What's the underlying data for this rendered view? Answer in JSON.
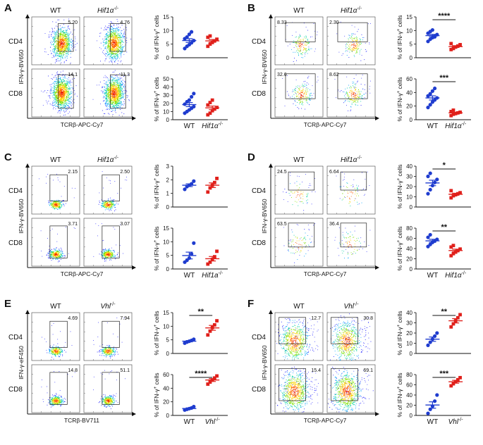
{
  "panels": [
    {
      "id": "A",
      "col_labels": [
        "WT",
        "Hif1α-/-"
      ],
      "row_labels": [
        "CD4",
        "CD8"
      ],
      "gates": [
        [
          "5.20",
          "4.76"
        ],
        [
          "14.1",
          "11.3"
        ]
      ],
      "y_axis_label": "IFN-γ-BV650",
      "x_axis_label": "TCRβ-APC-Cy7",
      "dot_ylabel": "% of IFN-γ+ cells",
      "group_labels": [
        "WT",
        "Hif1α-/-"
      ],
      "density": "high",
      "dots": [
        {
          "row": "CD4",
          "ylim": [
            0,
            15
          ],
          "yticks": [
            0,
            5,
            10,
            15
          ],
          "sig": "",
          "wt": [
            3.4,
            4.2,
            4.8,
            5.5,
            6.3,
            7.0,
            7.6,
            8.6,
            9.5
          ],
          "ko": [
            4.2,
            5.0,
            5.6,
            6.2,
            6.8,
            7.5,
            8.0
          ]
        },
        {
          "row": "CD8",
          "ylim": [
            0,
            50
          ],
          "yticks": [
            0,
            10,
            20,
            30,
            40,
            50
          ],
          "sig": "",
          "wt": [
            8,
            10,
            12,
            14,
            16,
            19,
            22,
            24,
            28,
            32
          ],
          "ko": [
            6,
            8,
            11,
            13,
            15,
            18,
            21,
            24
          ]
        }
      ]
    },
    {
      "id": "B",
      "col_labels": [
        "WT",
        "Hif1α-/-"
      ],
      "row_labels": [
        "CD4",
        "CD8"
      ],
      "gates": [
        [
          "8.33",
          "2.30"
        ],
        [
          "32.6",
          "8.62"
        ]
      ],
      "y_axis_label": "IFN-γ-BV650",
      "x_axis_label": "TCRβ-APC-Cy7",
      "dot_ylabel": "% of IFN-γ+ cells",
      "group_labels": [
        "WT",
        "Hif1α-/-"
      ],
      "density": "low",
      "dots": [
        {
          "row": "CD4",
          "ylim": [
            0,
            15
          ],
          "yticks": [
            0,
            5,
            10,
            15
          ],
          "sig": "****",
          "wt": [
            6.0,
            6.8,
            7.4,
            8.0,
            8.5,
            9.0,
            9.6,
            10.2,
            7.7
          ],
          "ko": [
            3.0,
            3.4,
            3.9,
            4.3,
            4.8,
            5.2
          ]
        },
        {
          "row": "CD8",
          "ylim": [
            0,
            60
          ],
          "yticks": [
            0,
            20,
            40,
            60
          ],
          "sig": "***",
          "wt": [
            18,
            22,
            26,
            29,
            32,
            35,
            38,
            42,
            46
          ],
          "ko": [
            6,
            8,
            9,
            10,
            11,
            12,
            14
          ]
        }
      ]
    },
    {
      "id": "C",
      "col_labels": [
        "WT",
        "Hif1α-/-"
      ],
      "row_labels": [
        "CD4",
        "CD8"
      ],
      "gates": [
        [
          "2.15",
          "2.50"
        ],
        [
          "3.71",
          "3.07"
        ]
      ],
      "y_axis_label": "IFN-γ-BV650",
      "x_axis_label": "TCRβ-APC-Cy7",
      "dot_ylabel": "% of IFN-γ+ cells",
      "group_labels": [
        "WT",
        "Hif1a-/-"
      ],
      "density": "tight",
      "dots": [
        {
          "row": "CD4",
          "ylim": [
            0,
            3
          ],
          "yticks": [
            0,
            1,
            2,
            3
          ],
          "sig": "",
          "wt": [
            1.3,
            1.5,
            1.6,
            1.7,
            1.9
          ],
          "ko": [
            1.1,
            1.4,
            1.6,
            1.8,
            2.1
          ]
        },
        {
          "row": "CD8",
          "ylim": [
            0,
            15
          ],
          "yticks": [
            0,
            5,
            10,
            15
          ],
          "sig": "",
          "wt": [
            2.5,
            3.2,
            4.0,
            5.5,
            9.5
          ],
          "ko": [
            1.8,
            2.5,
            3.5,
            4.5,
            6.5
          ]
        }
      ]
    },
    {
      "id": "D",
      "col_labels": [
        "WT",
        "Hif1α-/-"
      ],
      "row_labels": [
        "CD4",
        "CD8"
      ],
      "gates": [
        [
          "24.5",
          "6.64"
        ],
        [
          "63.5",
          "36.4"
        ]
      ],
      "y_axis_label": "IFN-γ-BV650",
      "x_axis_label": "TCRβ-APC-Cy7",
      "dot_ylabel": "% of IFN-γ+ cells",
      "group_labels": [
        "WT",
        "Hif1α-/-"
      ],
      "density": "sparse",
      "dots": [
        {
          "row": "CD4",
          "ylim": [
            0,
            40
          ],
          "yticks": [
            0,
            10,
            20,
            30,
            40
          ],
          "sig": "*",
          "wt": [
            13,
            17,
            21,
            24,
            27,
            30,
            33
          ],
          "ko": [
            9,
            11,
            12,
            13,
            14,
            16
          ]
        },
        {
          "row": "CD8",
          "ylim": [
            0,
            80
          ],
          "yticks": [
            0,
            20,
            40,
            60,
            80
          ],
          "sig": "**",
          "wt": [
            44,
            48,
            52,
            55,
            58,
            62,
            67
          ],
          "ko": [
            26,
            30,
            33,
            36,
            39,
            43,
            46
          ]
        }
      ]
    },
    {
      "id": "E",
      "col_labels": [
        "WT",
        "Vhl-/-"
      ],
      "row_labels": [
        "CD4",
        "CD8"
      ],
      "gates": [
        [
          "4.69",
          "7.94"
        ],
        [
          "14.8",
          "51.1"
        ]
      ],
      "y_axis_label": "IFN-γ-eF450",
      "x_axis_label": "TCRβ-BV711",
      "dot_ylabel": "% of IFN-γ+ cells",
      "group_labels": [
        "WT",
        "Vhl-/-"
      ],
      "density": "tight",
      "dots": [
        {
          "row": "CD4",
          "ylim": [
            0,
            15
          ],
          "yticks": [
            0,
            5,
            10,
            15
          ],
          "sig": "**",
          "wt": [
            3.8,
            4.2,
            4.5,
            4.8,
            5.2
          ],
          "ko": [
            6.8,
            8.2,
            9.5,
            10.5,
            12.0
          ]
        },
        {
          "row": "CD8",
          "ylim": [
            0,
            60
          ],
          "yticks": [
            0,
            20,
            40,
            60
          ],
          "sig": "****",
          "wt": [
            8,
            9,
            10,
            11,
            13
          ],
          "ko": [
            46,
            49,
            52,
            55,
            58
          ]
        }
      ]
    },
    {
      "id": "F",
      "col_labels": [
        "WT",
        "Vhl-/-"
      ],
      "row_labels": [
        "CD4",
        "CD8"
      ],
      "gates": [
        [
          "12.7",
          "30.8"
        ],
        [
          "15.4",
          "69.1"
        ]
      ],
      "y_axis_label": "IFN-γ-BV650",
      "x_axis_label": "TCRβ-APC-Cy7",
      "dot_ylabel": "% of IFN-γ+ cells",
      "group_labels": [
        "WT",
        "Vhl-/-"
      ],
      "density": "diffuse",
      "dots": [
        {
          "row": "CD4",
          "ylim": [
            0,
            40
          ],
          "yticks": [
            0,
            10,
            20,
            30,
            40
          ],
          "sig": "**",
          "wt": [
            8,
            11,
            14,
            17,
            20
          ],
          "ko": [
            26,
            29,
            32,
            35,
            38
          ]
        },
        {
          "row": "CD8",
          "ylim": [
            0,
            80
          ],
          "yticks": [
            0,
            20,
            40,
            60,
            80
          ],
          "sig": "***",
          "wt": [
            4,
            12,
            18,
            28,
            40
          ],
          "ko": [
            58,
            62,
            66,
            70,
            74
          ]
        }
      ]
    }
  ],
  "colors": {
    "wt": "#1f3ccf",
    "ko": "#e0201b"
  }
}
